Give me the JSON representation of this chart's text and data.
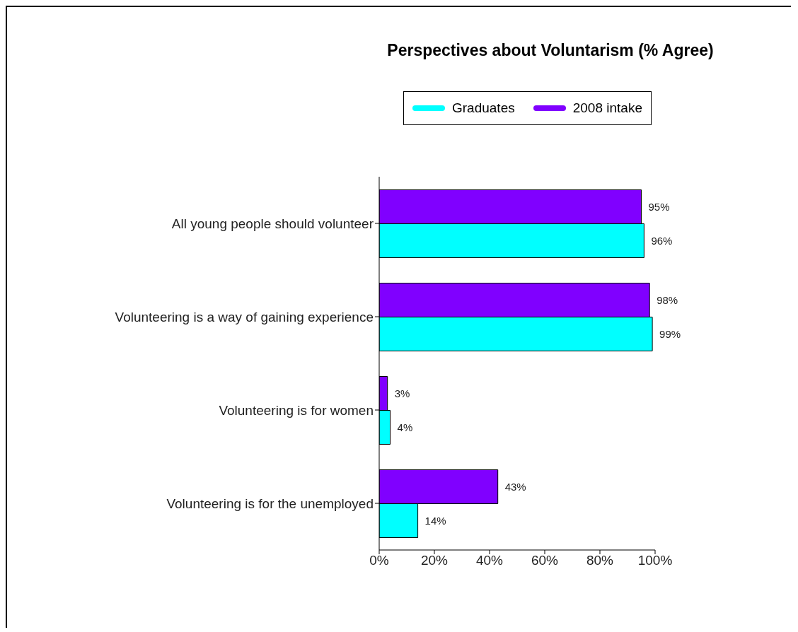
{
  "chart_data": {
    "type": "bar",
    "orientation": "horizontal",
    "title": "Perspectives about Voluntarism (% Agree)",
    "categories": [
      "All young people should volunteer",
      "Volunteering is a way of gaining experience",
      "Volunteering is for women",
      "Volunteering is for the unemployed"
    ],
    "series": [
      {
        "name": "Graduates",
        "color": "#00ffff",
        "values": [
          96,
          99,
          4,
          14
        ],
        "value_labels": [
          "96%",
          "99%",
          "4%",
          "14%"
        ]
      },
      {
        "name": "2008 intake",
        "color": "#8000ff",
        "values": [
          95,
          98,
          3,
          43
        ],
        "value_labels": [
          "95%",
          "98%",
          "3%",
          "43%"
        ]
      }
    ],
    "xlim": [
      0,
      100
    ],
    "xticks": [
      {
        "value": 0,
        "label": "0%"
      },
      {
        "value": 20,
        "label": "20%"
      },
      {
        "value": 40,
        "label": "40%"
      },
      {
        "value": 60,
        "label": "60%"
      },
      {
        "value": 80,
        "label": "80%"
      },
      {
        "value": 100,
        "label": "100%"
      }
    ],
    "legend": "top",
    "grid": false
  }
}
